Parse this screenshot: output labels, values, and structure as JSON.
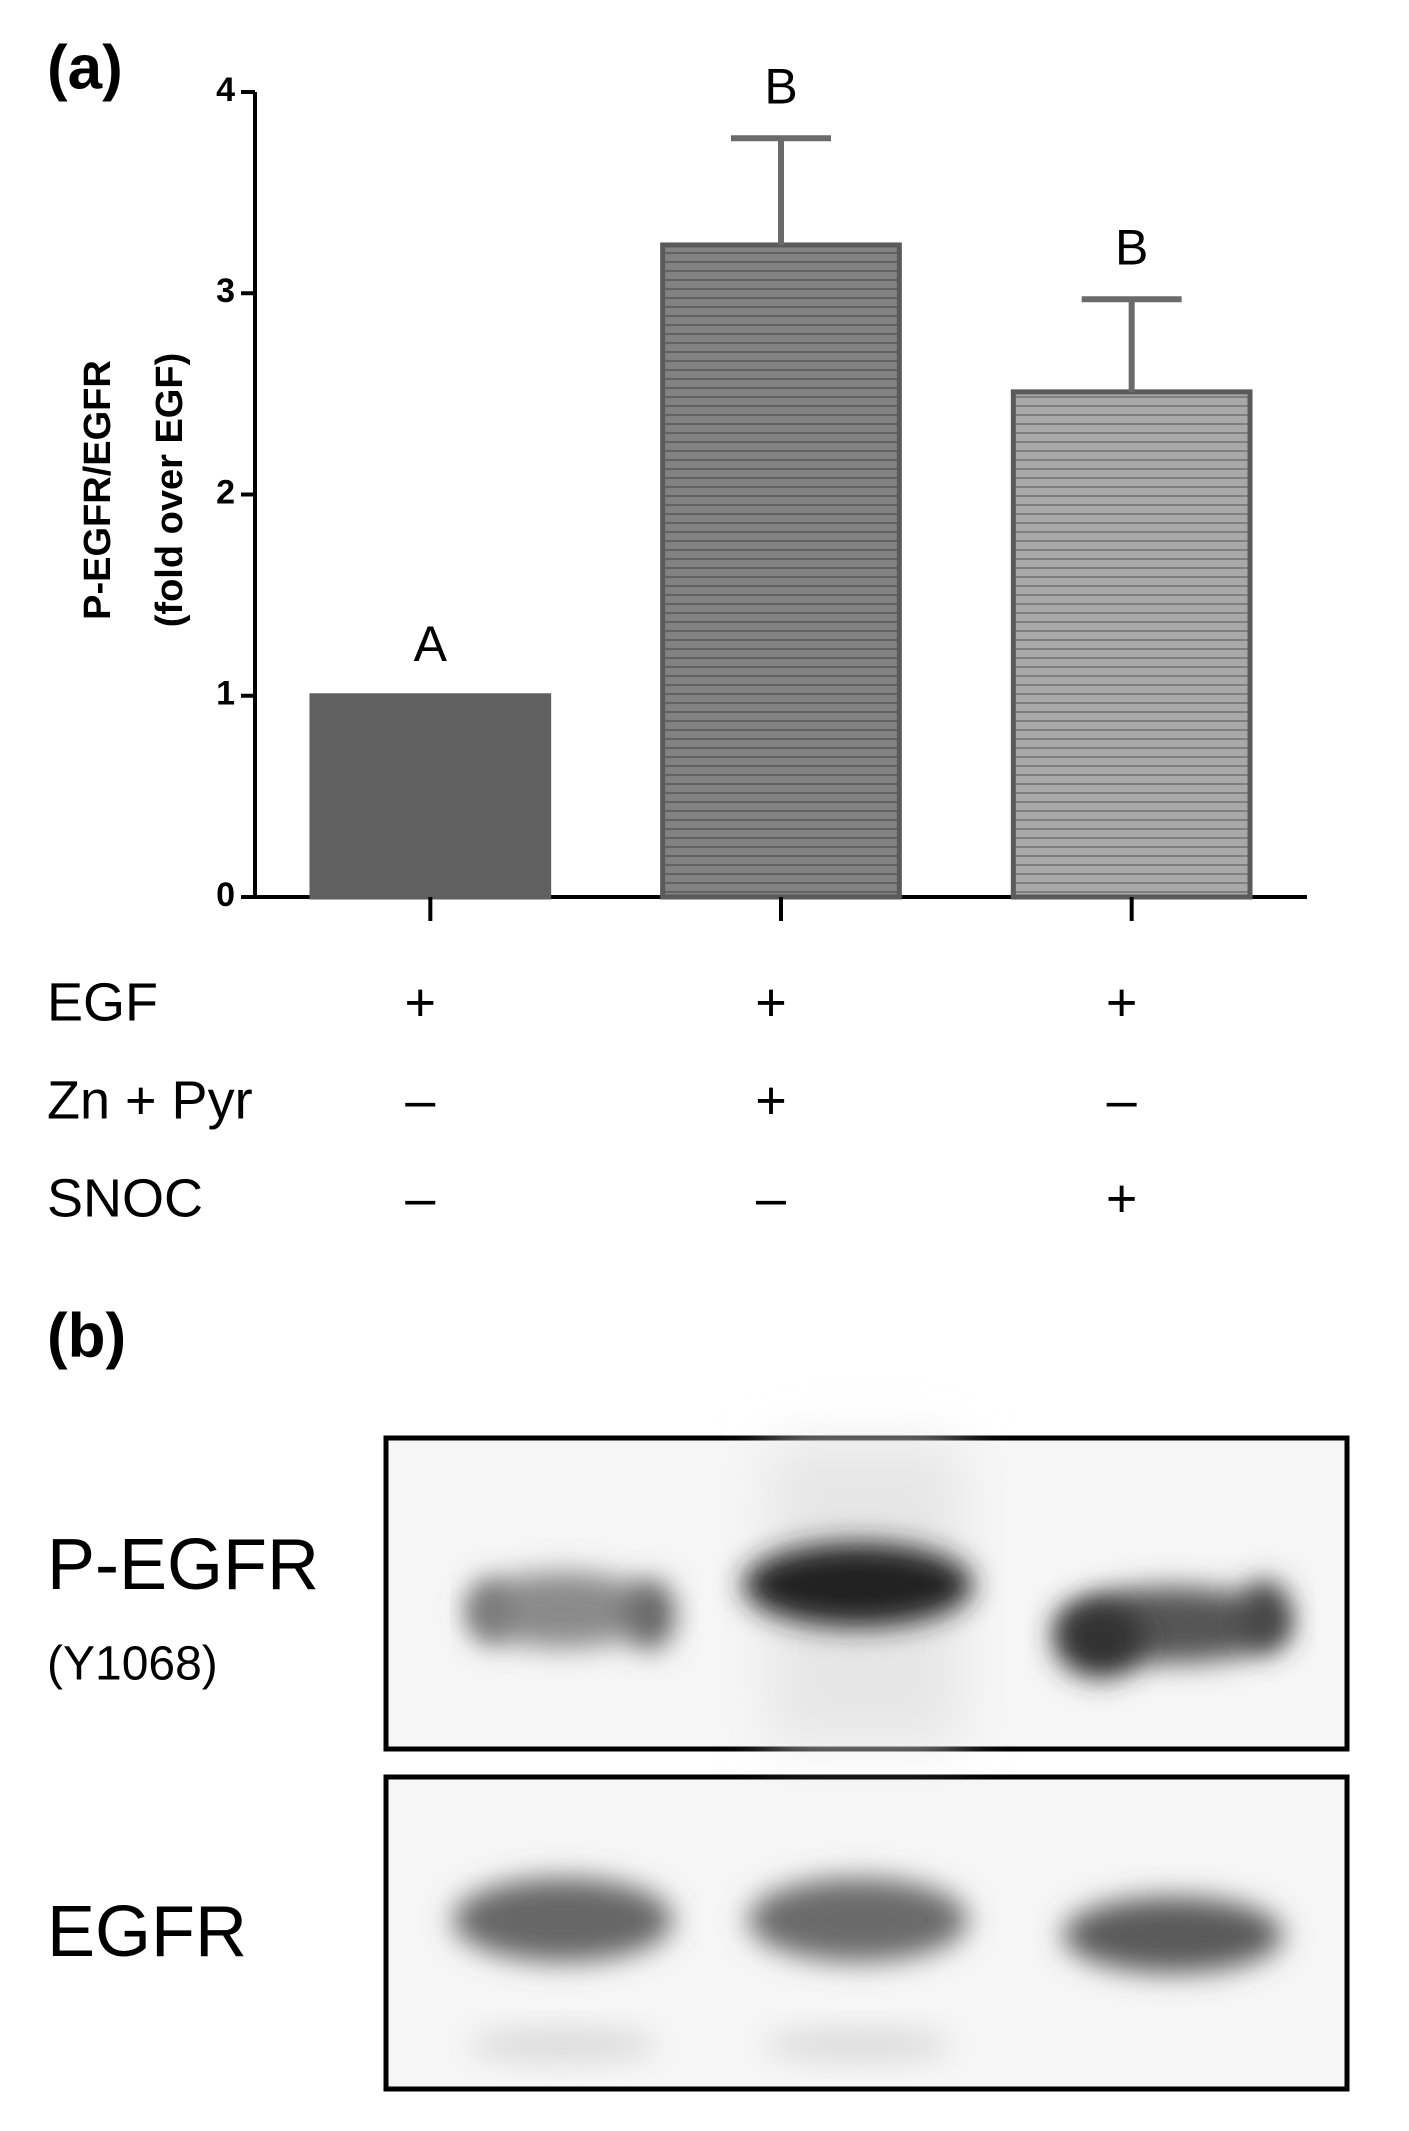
{
  "chart_data": {
    "type": "bar",
    "y_label_lines": [
      "P-EGFR/EGFR",
      "(fold over EGF)"
    ],
    "values": [
      1.0,
      3.24,
      2.51
    ],
    "errors": [
      null,
      0.53,
      0.46
    ],
    "annotations": [
      "A",
      "B",
      "B"
    ],
    "colors": [
      "#606060",
      "#828282",
      "#a9a9a9"
    ],
    "patterns": [
      "solid",
      "horizontal-lines",
      "horizontal-lines"
    ],
    "ylim": [
      0,
      4
    ],
    "yticks": [
      0,
      1,
      2,
      3,
      4
    ],
    "treatments": [
      {
        "name": "EGF",
        "signs": [
          "+",
          "+",
          "+"
        ]
      },
      {
        "name": "Zn + Pyr",
        "signs": [
          "–",
          "+",
          "–"
        ]
      },
      {
        "name": "SNOC",
        "signs": [
          "–",
          "–",
          "+"
        ]
      }
    ]
  },
  "panel_labels": [
    "(a)",
    "(b)"
  ],
  "blot": {
    "rows": [
      {
        "label": "P-EGFR",
        "sublabel": "(Y1068)"
      },
      {
        "label": "EGFR"
      }
    ]
  }
}
